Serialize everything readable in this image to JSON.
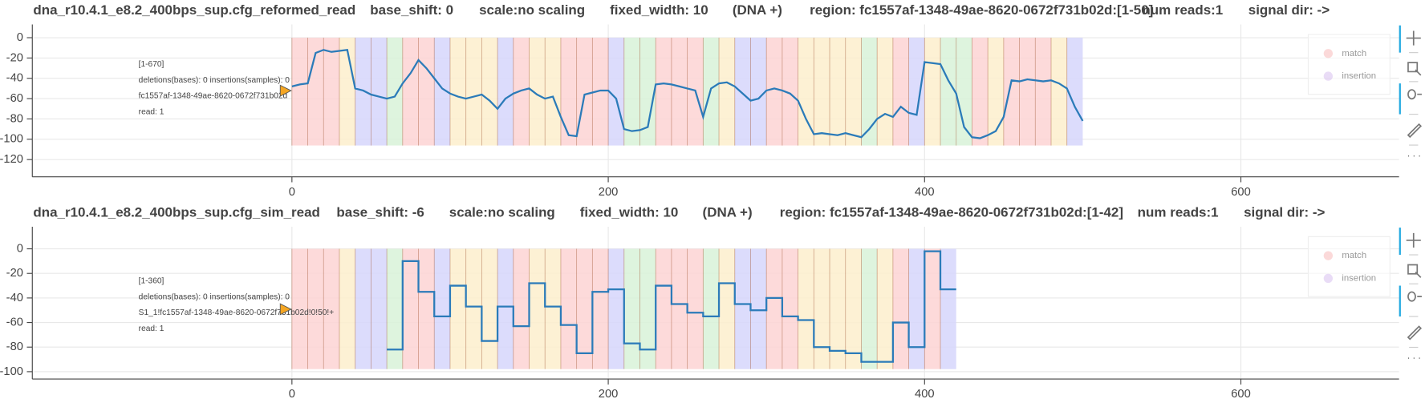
{
  "chart_data": [
    {
      "type": "line",
      "header": [
        "dna_r10.4.1_e8.2_400bps_sup.cfg_reformed_read",
        "base_shift: 0",
        "scale:no scaling",
        "fixed_width: 10",
        "(DNA +)",
        "region: fc1557af-1348-49ae-8620-0672f731b02d:[1-50]",
        "num reads:1",
        "signal dir: ->"
      ],
      "annotations": [
        "[1-670]",
        "deletions(bases): 0 insertions(samples): 0",
        "fc1557af-1348-49ae-8620-0672f731b02d",
        "read: 1"
      ],
      "legend": [
        {
          "label": "match",
          "color": "#f4a0a0"
        },
        {
          "label": "insertion",
          "color": "#c9a8e8"
        }
      ],
      "xlim": [
        -163,
        700
      ],
      "xticks": [
        0,
        200,
        400,
        600
      ],
      "ylim": [
        -137,
        13
      ],
      "yticks": [
        0,
        -20,
        -40,
        -60,
        -80,
        -100,
        -120
      ],
      "grid": true,
      "bands": {
        "start": 0,
        "width": 10,
        "colors": [
          "#fdd4d4",
          "#fdd4d4",
          "#fdd4d4",
          "#fdeecd",
          "#d6d6fb",
          "#d6d6fb",
          "#d8f2d8",
          "#fdd4d4",
          "#fdd4d4",
          "#d6d6fb",
          "#fdeecd",
          "#fdeecd",
          "#fdeecd",
          "#d6d6fb",
          "#fdd4d4",
          "#fdeecd",
          "#fdeecd",
          "#fdd4d4",
          "#fdd4d4",
          "#fdd4d4",
          "#d6d6fb",
          "#d8f2d8",
          "#d8f2d8",
          "#fdd4d4",
          "#fdd4d4",
          "#fdd4d4",
          "#d8f2d8",
          "#fdeecd",
          "#d6d6fb",
          "#d6d6fb",
          "#fdd4d4",
          "#fdd4d4",
          "#fdeecd",
          "#fdeecd",
          "#fdeecd",
          "#fdeecd",
          "#d8f2d8",
          "#fdeecd",
          "#fdd4d4",
          "#d6d6fb",
          "#fdeecd",
          "#d8f2d8",
          "#d8f2d8",
          "#fdd4d4",
          "#fdeecd",
          "#fdd4d4",
          "#fdd4d4",
          "#fdd4d4",
          "#fdeecd",
          "#d6d6fb"
        ]
      },
      "series": [
        {
          "color": "#2b7bb9",
          "x": [
            0,
            5,
            10,
            15,
            20,
            25,
            30,
            35,
            40,
            45,
            50,
            55,
            60,
            65,
            70,
            75,
            80,
            85,
            90,
            95,
            100,
            105,
            110,
            115,
            120,
            125,
            130,
            135,
            140,
            145,
            150,
            155,
            160,
            165,
            170,
            175,
            180,
            185,
            190,
            195,
            200,
            205,
            210,
            215,
            220,
            225,
            230,
            235,
            240,
            245,
            250,
            255,
            260,
            265,
            270,
            275,
            280,
            285,
            290,
            295,
            300,
            305,
            310,
            315,
            320,
            325,
            330,
            335,
            340,
            345,
            350,
            355,
            360,
            365,
            370,
            375,
            380,
            385,
            390,
            395,
            400,
            405,
            410,
            415,
            420,
            425,
            430,
            435,
            440,
            445,
            450,
            455,
            460,
            465,
            470,
            475,
            480,
            485,
            490,
            495,
            500
          ],
          "values": [
            -48,
            -46,
            -45,
            -15,
            -12,
            -14,
            -13,
            -12,
            -50,
            -52,
            -56,
            -58,
            -60,
            -58,
            -45,
            -35,
            -22,
            -30,
            -40,
            -50,
            -55,
            -58,
            -60,
            -58,
            -56,
            -62,
            -70,
            -60,
            -55,
            -52,
            -50,
            -56,
            -60,
            -58,
            -78,
            -96,
            -97,
            -56,
            -54,
            -52,
            -52,
            -60,
            -90,
            -92,
            -91,
            -88,
            -46,
            -45,
            -46,
            -48,
            -50,
            -52,
            -78,
            -50,
            -45,
            -44,
            -48,
            -55,
            -62,
            -60,
            -52,
            -50,
            -52,
            -55,
            -62,
            -80,
            -95,
            -94,
            -95,
            -96,
            -94,
            -96,
            -98,
            -90,
            -80,
            -75,
            -78,
            -68,
            -74,
            -76,
            -24,
            -25,
            -26,
            -42,
            -55,
            -88,
            -98,
            -99,
            -96,
            -92,
            -78,
            -42,
            -43,
            -41,
            -42,
            -43,
            -42,
            -45,
            -50,
            -68,
            -82
          ]
        }
      ]
    },
    {
      "type": "line",
      "header": [
        "dna_r10.4.1_e8.2_400bps_sup.cfg_sim_read",
        "base_shift: -6",
        "scale:no scaling",
        "fixed_width: 10",
        "(DNA +)",
        "region: fc1557af-1348-49ae-8620-0672f731b02d:[1-42]",
        "num reads:1",
        "signal dir: ->"
      ],
      "annotations": [
        "[1-360]",
        "deletions(bases): 0 insertions(samples): 0",
        "S1_1!fc1557af-1348-49ae-8620-0672f731b02d!0!50!+",
        "read: 1"
      ],
      "legend": [
        {
          "label": "match",
          "color": "#f4a0a0"
        },
        {
          "label": "insertion",
          "color": "#c9a8e8"
        }
      ],
      "xlim": [
        -163,
        700
      ],
      "xticks": [
        0,
        200,
        400,
        600
      ],
      "ylim": [
        -106,
        18
      ],
      "yticks": [
        0,
        -20,
        -40,
        -60,
        -80,
        -100
      ],
      "grid": true,
      "bands": {
        "start": 0,
        "width": 10,
        "colors": [
          "#fdd4d4",
          "#fdd4d4",
          "#fdd4d4",
          "#fdeecd",
          "#d6d6fb",
          "#d6d6fb",
          "#d8f2d8",
          "#fdd4d4",
          "#fdd4d4",
          "#d6d6fb",
          "#fdeecd",
          "#fdeecd",
          "#fdeecd",
          "#d6d6fb",
          "#fdd4d4",
          "#fdeecd",
          "#fdeecd",
          "#fdd4d4",
          "#fdd4d4",
          "#fdd4d4",
          "#d6d6fb",
          "#d8f2d8",
          "#d8f2d8",
          "#fdd4d4",
          "#fdd4d4",
          "#fdd4d4",
          "#d8f2d8",
          "#fdeecd",
          "#d6d6fb",
          "#d6d6fb",
          "#fdd4d4",
          "#fdd4d4",
          "#fdeecd",
          "#fdeecd",
          "#fdeecd",
          "#fdeecd",
          "#d8f2d8",
          "#fdeecd",
          "#fdd4d4",
          "#d6d6fb",
          "#fdd4d4",
          "#d6d6fb"
        ]
      },
      "series": [
        {
          "color": "#2b7bb9",
          "x": [
            60,
            70,
            70,
            80,
            80,
            90,
            90,
            100,
            100,
            110,
            110,
            120,
            120,
            130,
            130,
            140,
            140,
            150,
            150,
            160,
            160,
            170,
            170,
            180,
            180,
            190,
            190,
            200,
            200,
            210,
            210,
            220,
            220,
            230,
            230,
            240,
            240,
            250,
            250,
            260,
            260,
            270,
            270,
            280,
            280,
            290,
            290,
            300,
            300,
            310,
            310,
            320,
            320,
            330,
            330,
            340,
            340,
            350,
            350,
            360,
            360,
            370,
            370,
            380,
            380,
            390,
            390,
            400,
            400,
            410,
            410,
            420
          ],
          "values": [
            -82,
            -82,
            -10,
            -10,
            -35,
            -35,
            -55,
            -55,
            -30,
            -30,
            -47,
            -47,
            -75,
            -75,
            -47,
            -47,
            -63,
            -63,
            -28,
            -28,
            -47,
            -47,
            -62,
            -62,
            -85,
            -85,
            -35,
            -35,
            -33,
            -33,
            -77,
            -77,
            -82,
            -82,
            -30,
            -30,
            -45,
            -45,
            -52,
            -52,
            -55,
            -55,
            -28,
            -28,
            -45,
            -45,
            -50,
            -50,
            -40,
            -40,
            -55,
            -55,
            -58,
            -58,
            -80,
            -80,
            -83,
            -83,
            -85,
            -85,
            -92,
            -92,
            -92,
            -92,
            -60,
            -60,
            -80,
            -80,
            -2,
            -2,
            -33,
            -33
          ]
        }
      ]
    }
  ]
}
